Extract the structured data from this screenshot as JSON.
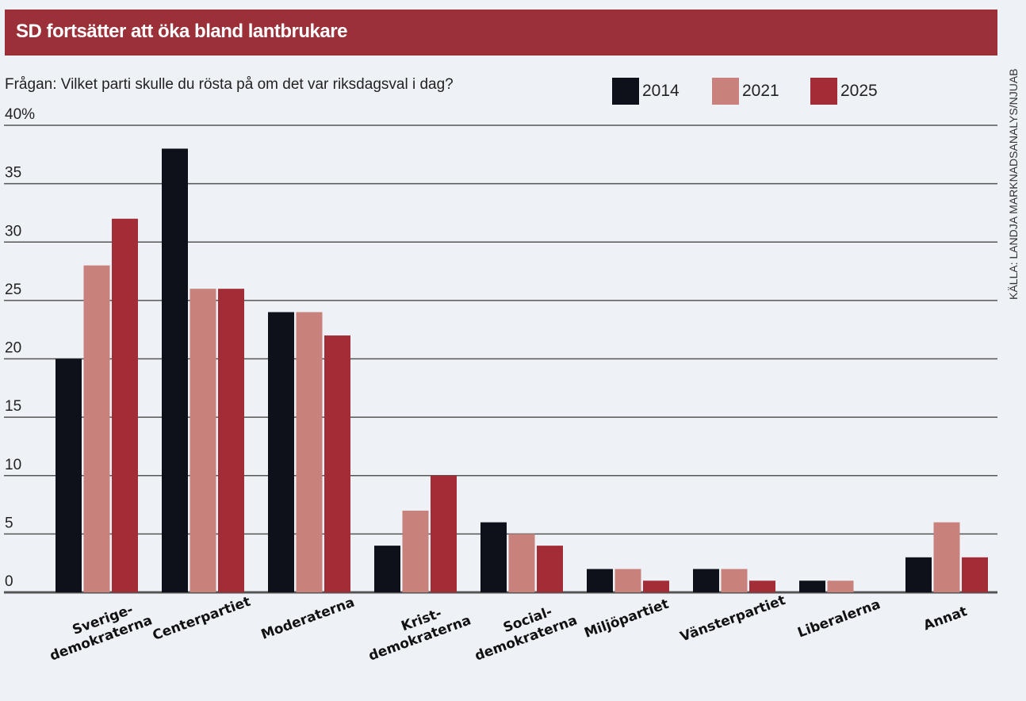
{
  "chart_data": {
    "type": "bar",
    "title": "SD fortsätter att öka bland lantbrukare",
    "subtitle": "Frågan: Vilket parti skulle du rösta på om det var riksdagsval i dag?",
    "source": "KÄLLA: LANDJA MARKNADSANALYS/NJUAB",
    "categories": [
      [
        "Sverige-",
        "demokraterna"
      ],
      [
        "Centerpartiet"
      ],
      [
        "Moderaterna"
      ],
      [
        "Krist-",
        "demokraterna"
      ],
      [
        "Social-",
        "demokraterna"
      ],
      [
        "Miljöpartiet"
      ],
      [
        "Vänsterpartiet"
      ],
      [
        "Liberalerna"
      ],
      [
        "Annat"
      ]
    ],
    "series": [
      {
        "name": "2014",
        "color": "#0e1119",
        "values": [
          20,
          38,
          24,
          4,
          6,
          2,
          2,
          1,
          3
        ]
      },
      {
        "name": "2021",
        "color": "#c9827b",
        "values": [
          28,
          26,
          24,
          7,
          5,
          2,
          2,
          1,
          6
        ]
      },
      {
        "name": "2025",
        "color": "#a32d37",
        "values": [
          32,
          26,
          22,
          10,
          4,
          1,
          1,
          null,
          3
        ]
      }
    ],
    "ylim": [
      0,
      40
    ],
    "yticks": [
      "0",
      "5",
      "10",
      "15",
      "20",
      "25",
      "30",
      "35",
      "40%"
    ],
    "grid": true,
    "legend": "top-right"
  }
}
